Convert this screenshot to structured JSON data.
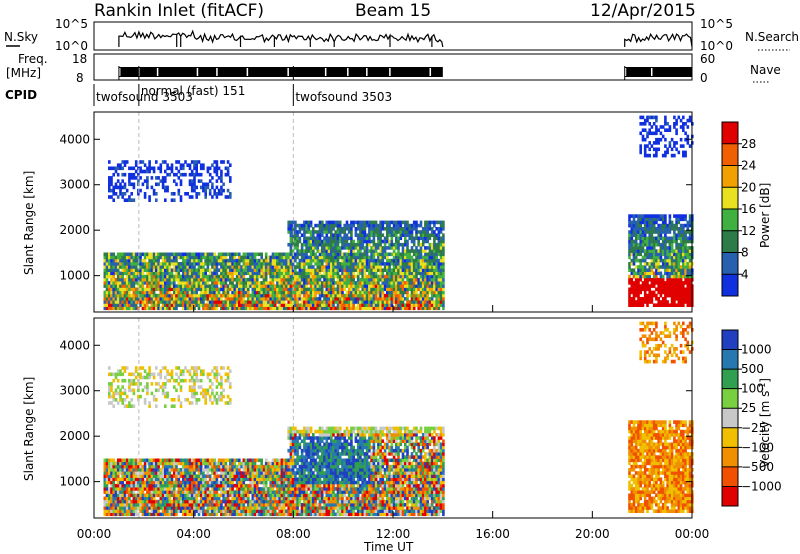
{
  "header": {
    "station": "Rankin Inlet (fitACF)",
    "beam": "Beam 15",
    "date": "12/Apr/2015"
  },
  "top_panel": {
    "nsky_label": "N.Sky",
    "nsky_ticks": [
      "10^5",
      "10^0"
    ],
    "nsearch_label": "N.Search",
    "nsearch_ticks": [
      "10^5",
      "10^0"
    ],
    "freq_label": "Freq.",
    "freq_unit": "[MHz]",
    "freq_ticks": [
      "18",
      "8"
    ],
    "nave_label": "Nave",
    "nave_ticks": [
      "60",
      "0"
    ],
    "cpid_label": "CPID",
    "cpid_entries": [
      {
        "text": "twofsound 3503",
        "start_hour": 0.0
      },
      {
        "text": "normal (fast) 151",
        "start_hour": 1.8
      },
      {
        "text": "twofsound 3503",
        "start_hour": 8.0
      }
    ]
  },
  "chart_data": [
    {
      "type": "heatmap",
      "name": "power",
      "ylabel": "Slant Range [km]",
      "xlabel": "",
      "xlim": [
        0,
        24
      ],
      "ylim": [
        200,
        4600
      ],
      "yticks": [
        "1000",
        "2000",
        "3000",
        "4000"
      ],
      "colorbar_label": "Power [dB]",
      "colorbar_ticks": [
        "4",
        "8",
        "12",
        "16",
        "20",
        "24",
        "28"
      ],
      "colors": [
        "#1030e0",
        "#2860b0",
        "#2e7b4a",
        "#40b040",
        "#e8e020",
        "#f0a000",
        "#f06000",
        "#e00000"
      ]
    },
    {
      "type": "heatmap",
      "name": "velocity",
      "ylabel": "Slant Range [km]",
      "xlabel": "Time UT",
      "xlim": [
        0,
        24
      ],
      "ylim": [
        200,
        4600
      ],
      "yticks": [
        "1000",
        "2000",
        "3000",
        "4000"
      ],
      "xticks": [
        "00:00",
        "04:00",
        "08:00",
        "12:00",
        "16:00",
        "20:00",
        "00:00"
      ],
      "colorbar_label": "Velocity [m s",
      "colorbar_sup": "-1",
      "colorbar_ticks": [
        "1000",
        "500",
        "100",
        "25",
        "−25",
        "−100",
        "−500",
        "−1000"
      ],
      "colors": [
        "#2040c0",
        "#2878b0",
        "#30a050",
        "#78d040",
        "#c8c8c8",
        "#f0c000",
        "#f09000",
        "#f05000",
        "#e00000"
      ]
    }
  ]
}
